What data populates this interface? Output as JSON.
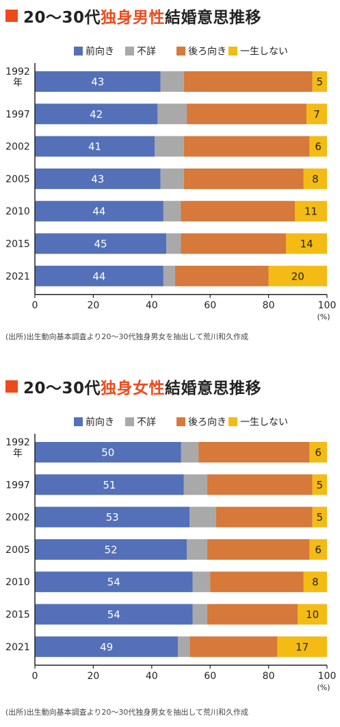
{
  "colors": {
    "forward": "#5470b8",
    "unknown": "#a9a9a9",
    "backward": "#d6793a",
    "never": "#f3bb14",
    "title_mark": "#ee4a1c",
    "title_accent": "#ee4a1c",
    "axis": "#222222"
  },
  "chart_data": [
    {
      "type": "bar",
      "orientation": "horizontal",
      "stacked": true,
      "title": {
        "prefix": "20〜30代",
        "accent": "独身男性",
        "suffix": "結婚意思推移"
      },
      "categories": [
        "1992\n年",
        "1997",
        "2002",
        "2005",
        "2010",
        "2015",
        "2021"
      ],
      "series": [
        {
          "name": "前向き",
          "values": [
            43,
            42,
            41,
            43,
            44,
            45,
            44
          ]
        },
        {
          "name": "不詳",
          "values": [
            8,
            10,
            10,
            8,
            6,
            5,
            4
          ]
        },
        {
          "name": "後ろ向き",
          "values": [
            44,
            41,
            43,
            41,
            39,
            36,
            32
          ]
        },
        {
          "name": "一生しない",
          "values": [
            5,
            7,
            6,
            8,
            11,
            14,
            20
          ]
        }
      ],
      "labeled_series": [
        "前向き",
        "一生しない"
      ],
      "xlim": [
        0,
        100
      ],
      "xticks": [
        0,
        20,
        40,
        60,
        80,
        100
      ],
      "xunit": "(%)",
      "legend_position": "top",
      "grid": false,
      "source": "(出所)出生動向基本調査より20〜30代独身男女を抽出して荒川和久作成"
    },
    {
      "type": "bar",
      "orientation": "horizontal",
      "stacked": true,
      "title": {
        "prefix": "20〜30代",
        "accent": "独身女性",
        "suffix": "結婚意思推移"
      },
      "categories": [
        "1992\n年",
        "1997",
        "2002",
        "2005",
        "2010",
        "2015",
        "2021"
      ],
      "series": [
        {
          "name": "前向き",
          "values": [
            50,
            51,
            53,
            52,
            54,
            54,
            49
          ]
        },
        {
          "name": "不詳",
          "values": [
            6,
            8,
            9,
            7,
            6,
            5,
            4
          ]
        },
        {
          "name": "後ろ向き",
          "values": [
            38,
            36,
            33,
            35,
            32,
            31,
            30
          ]
        },
        {
          "name": "一生しない",
          "values": [
            6,
            5,
            5,
            6,
            8,
            10,
            17
          ]
        }
      ],
      "labeled_series": [
        "前向き",
        "一生しない"
      ],
      "xlim": [
        0,
        100
      ],
      "xticks": [
        0,
        20,
        40,
        60,
        80,
        100
      ],
      "xunit": "(%)",
      "legend_position": "top",
      "grid": false,
      "source": "(出所)出生動向基本調査より20〜30代独身男女を抽出して荒川和久作成"
    }
  ]
}
